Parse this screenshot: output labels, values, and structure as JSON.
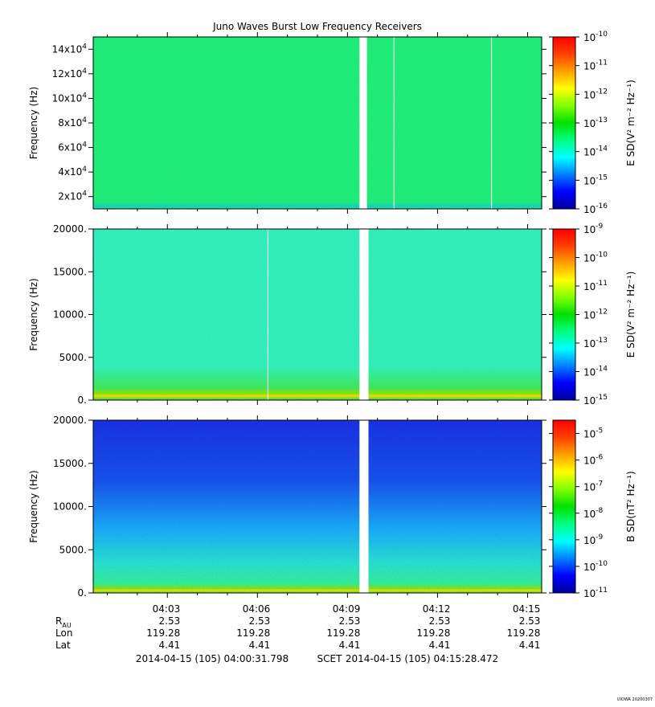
{
  "title": "Juno Waves Burst Low Frequency Receivers",
  "colors": {
    "colorbar": [
      "#0000a0",
      "#0000ff",
      "#0080ff",
      "#00ffff",
      "#00ff80",
      "#00e000",
      "#80ff00",
      "#ffff00",
      "#ffa000",
      "#ff4000",
      "#ff0000"
    ],
    "panel1_fill": "#22ee77",
    "panel2_fill": "#33f0b8",
    "panel3_top": "#1a2fe0",
    "panel3_mid": "#1aa8f5",
    "panel3_bottom": "#38f090",
    "band_yellow": "#e6e600",
    "gap": "#ffffff"
  },
  "chart_data": [
    {
      "type": "heatmap",
      "title": "Juno Waves Burst Low Frequency Receivers",
      "ylabel": "Frequency (Hz)",
      "ylim": [
        10000,
        150000
      ],
      "yticks": [
        {
          "value": 20000,
          "mant": "2x10",
          "exp": "4"
        },
        {
          "value": 40000,
          "mant": "4x10",
          "exp": "4"
        },
        {
          "value": 60000,
          "mant": "6x10",
          "exp": "4"
        },
        {
          "value": 80000,
          "mant": "8x10",
          "exp": "4"
        },
        {
          "value": 100000,
          "mant": "10x10",
          "exp": "4"
        },
        {
          "value": 120000,
          "mant": "12x10",
          "exp": "4"
        },
        {
          "value": 140000,
          "mant": "14x10",
          "exp": "4"
        }
      ],
      "colorbar_label": "E SD(V² m⁻² Hz⁻¹)",
      "colorbar_range_exp": [
        -16,
        -10
      ],
      "colorbar_ticks": [
        "-16",
        "-15",
        "-14",
        "-13",
        "-12",
        "-11",
        "-10"
      ],
      "gap_minutes": [
        9.4,
        9.65
      ],
      "white_lines_minutes": [
        10.55,
        13.8
      ]
    },
    {
      "type": "heatmap",
      "ylabel": "Frequency (Hz)",
      "ylim": [
        0,
        20000
      ],
      "yticks": [
        {
          "value": 0,
          "label": "0."
        },
        {
          "value": 5000,
          "label": "5000."
        },
        {
          "value": 10000,
          "label": "10000."
        },
        {
          "value": 15000,
          "label": "15000."
        },
        {
          "value": 20000,
          "label": "20000."
        }
      ],
      "colorbar_label": "E SD(V² m⁻² Hz⁻¹)",
      "colorbar_range_exp": [
        -15,
        -9
      ],
      "colorbar_ticks": [
        "-15",
        "-14",
        "-13",
        "-12",
        "-11",
        "-10",
        "-9"
      ],
      "gap_minutes": [
        9.4,
        9.7
      ],
      "white_lines_minutes": [
        6.35
      ]
    },
    {
      "type": "heatmap",
      "ylabel": "Frequency (Hz)",
      "ylim": [
        0,
        20000
      ],
      "yticks": [
        {
          "value": 0,
          "label": "0."
        },
        {
          "value": 5000,
          "label": "5000."
        },
        {
          "value": 10000,
          "label": "10000."
        },
        {
          "value": 15000,
          "label": "15000."
        },
        {
          "value": 20000,
          "label": "20000."
        }
      ],
      "colorbar_label": "B SD(nT² Hz⁻¹)",
      "colorbar_range_exp": [
        -11,
        -4.5
      ],
      "colorbar_ticks": [
        "-11",
        "-10",
        "-9",
        "-8",
        "-7",
        "-6",
        "-5"
      ],
      "gap_minutes": [
        9.4,
        9.7
      ],
      "white_lines_minutes": []
    }
  ],
  "x_axis": {
    "start_minutes": 0.53,
    "end_minutes": 15.47,
    "ticks": [
      {
        "minutes": 3,
        "label": "04:03"
      },
      {
        "minutes": 6,
        "label": "04:06"
      },
      {
        "minutes": 9,
        "label": "04:09"
      },
      {
        "minutes": 12,
        "label": "04:12"
      },
      {
        "minutes": 15,
        "label": "04:15"
      }
    ],
    "minor_ticks_minutes": [
      1,
      2,
      4,
      5,
      7,
      8,
      10,
      11,
      13,
      14
    ]
  },
  "ephemeris": {
    "rows": [
      {
        "label": "R",
        "sub": "AU",
        "values": [
          "2.53",
          "2.53",
          "2.53",
          "2.53",
          "2.53"
        ]
      },
      {
        "label": "Lon",
        "sub": "",
        "values": [
          "119.28",
          "119.28",
          "119.28",
          "119.28",
          "119.28"
        ]
      },
      {
        "label": "Lat",
        "sub": "",
        "values": [
          "4.41",
          "4.41",
          "4.41",
          "4.41",
          "4.41"
        ]
      }
    ]
  },
  "time_range": {
    "start": "2014-04-15 (105) 04:00:31.798",
    "frame": "SCET",
    "end": "2014-04-15 (105) 04:15:28.472"
  },
  "credit": "UIOWA 20200307"
}
